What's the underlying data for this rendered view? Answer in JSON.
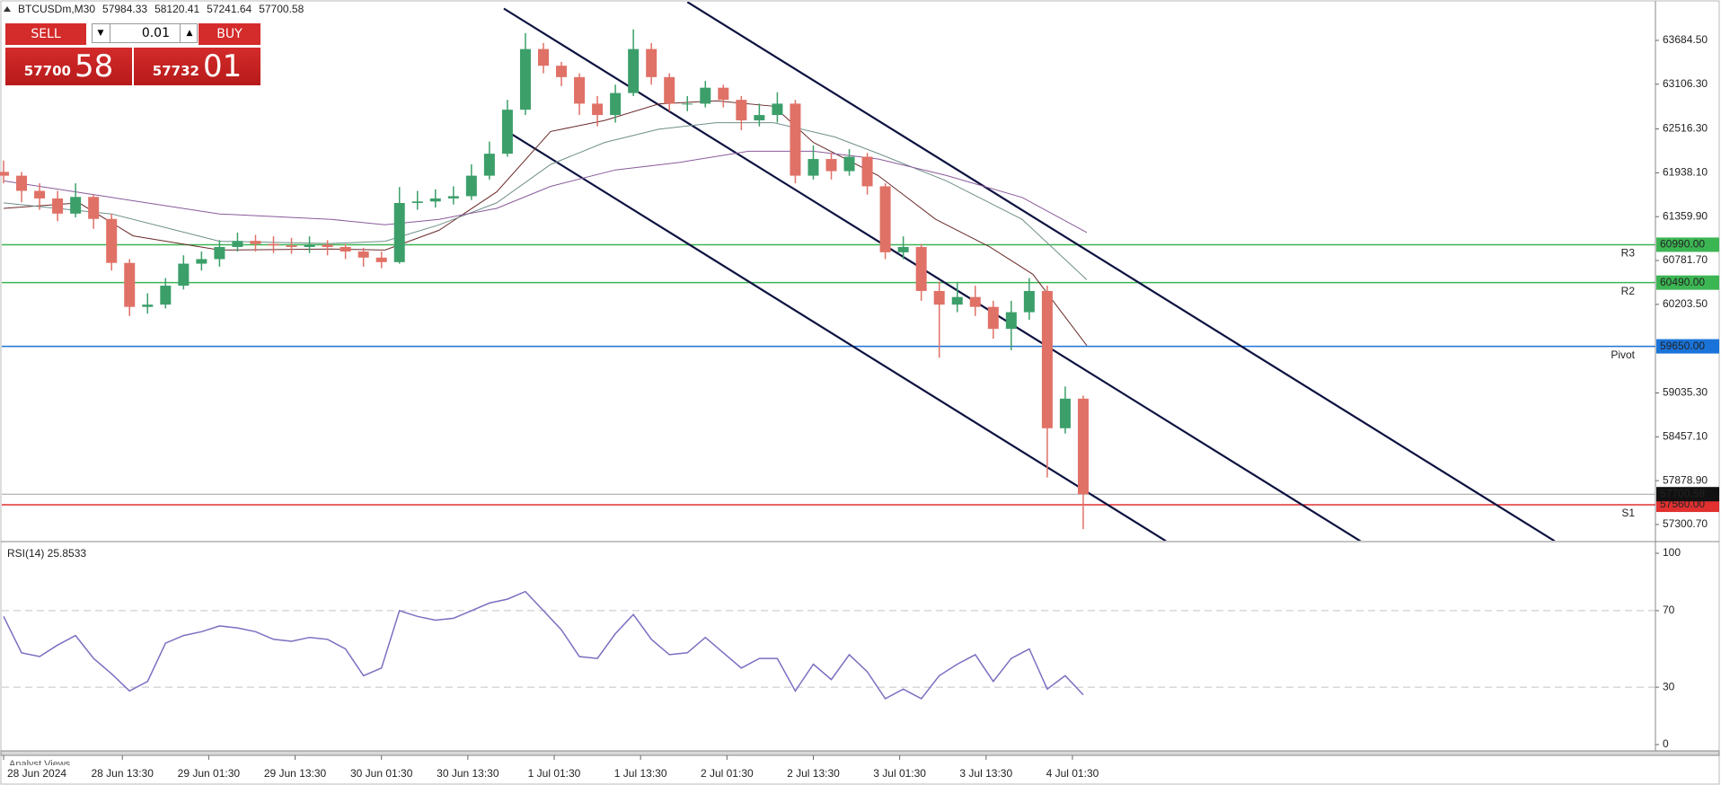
{
  "ui": {
    "header": {
      "symbol": "BTCUSDm,M30",
      "ohlc": [
        "57984.33",
        "58120.41",
        "57241.64",
        "57700.58"
      ]
    },
    "trade": {
      "sell": "SELL",
      "buy": "BUY",
      "lot": "0.01",
      "sell_price": [
        "57700",
        "58"
      ],
      "buy_price": [
        "57732",
        "01"
      ]
    },
    "tab": "Analyst Views"
  },
  "chart_data": [
    {
      "type": "candlestick",
      "x": [
        0,
        5,
        10,
        15,
        20,
        25,
        30,
        35,
        40,
        45,
        50,
        55,
        60,
        65,
        70,
        75,
        80,
        85,
        90,
        95,
        100,
        105,
        110,
        115,
        120,
        125,
        130,
        135,
        140,
        145,
        150,
        155,
        160,
        165,
        170,
        175,
        180,
        185,
        190,
        195,
        200,
        205,
        210,
        215,
        220,
        225,
        230,
        235,
        240,
        245,
        250,
        255,
        260,
        265,
        270,
        275,
        280,
        285,
        290,
        295,
        300
      ],
      "open": [
        61950,
        61900,
        61700,
        61600,
        61400,
        61620,
        61330,
        60750,
        60170,
        60200,
        60450,
        60740,
        60800,
        60960,
        61040,
        61000,
        60980,
        60960,
        60990,
        60960,
        60900,
        60820,
        60760,
        61540,
        61560,
        61600,
        61630,
        61900,
        62190,
        62770,
        63570,
        63350,
        63200,
        62850,
        62700,
        62990,
        63570,
        63200,
        62850,
        62850,
        63060,
        62900,
        62630,
        62700,
        62850,
        61900,
        62120,
        61960,
        62150,
        61760,
        60890,
        60960,
        60380,
        60200,
        60300,
        60170,
        59880,
        60100,
        60380,
        58570,
        58960
      ],
      "high": [
        62100,
        61950,
        61800,
        61700,
        61800,
        61650,
        61400,
        60800,
        60350,
        60550,
        60850,
        60900,
        61050,
        61150,
        61120,
        61100,
        61080,
        61100,
        61050,
        61000,
        60950,
        60900,
        61750,
        61700,
        61720,
        61760,
        62050,
        62350,
        62900,
        63780,
        63650,
        63400,
        63250,
        62950,
        63100,
        63830,
        63650,
        63250,
        62950,
        63150,
        63100,
        62950,
        62850,
        63000,
        62900,
        62300,
        62200,
        62250,
        62200,
        61800,
        61100,
        61000,
        60500,
        60500,
        60450,
        60250,
        60250,
        60550,
        60450,
        59120,
        59000
      ],
      "low": [
        61800,
        61550,
        61450,
        61300,
        61350,
        61200,
        60650,
        60050,
        60080,
        60150,
        60400,
        60650,
        60700,
        60900,
        60900,
        60880,
        60870,
        60880,
        60850,
        60800,
        60700,
        60680,
        60740,
        61450,
        61480,
        61520,
        61580,
        61850,
        62150,
        62700,
        63250,
        63080,
        62700,
        62550,
        62600,
        62950,
        63100,
        62750,
        62750,
        62800,
        62800,
        62500,
        62550,
        62600,
        61800,
        61850,
        61850,
        61900,
        61650,
        60800,
        60800,
        60250,
        59500,
        60100,
        60050,
        59750,
        59600,
        60000,
        57920,
        58500,
        57240
      ],
      "close": [
        61900,
        61700,
        61600,
        61400,
        61620,
        61330,
        60750,
        60170,
        60200,
        60450,
        60740,
        60800,
        60960,
        61040,
        61000,
        60980,
        60960,
        60990,
        60960,
        60900,
        60820,
        60760,
        61540,
        61560,
        61600,
        61630,
        61900,
        62190,
        62770,
        63570,
        63350,
        63200,
        62850,
        62700,
        62990,
        63570,
        63200,
        62850,
        62850,
        63060,
        62900,
        62630,
        62700,
        62850,
        61900,
        62120,
        61960,
        62150,
        61760,
        60890,
        60960,
        60380,
        60200,
        60300,
        60170,
        59880,
        60100,
        60380,
        58570,
        58960,
        57700
      ],
      "up_color": "#3c9f6a",
      "down_color": "#e07167",
      "xlim": [
        -0.5,
        459
      ],
      "ylim": [
        57087,
        64193
      ],
      "yticks": [
        {
          "value": 63684.5,
          "label": "63684.50"
        },
        {
          "value": 63106.3,
          "label": "63106.30"
        },
        {
          "value": 62516.3,
          "label": "62516.30"
        },
        {
          "value": 61938.1,
          "label": "61938.10"
        },
        {
          "value": 61359.9,
          "label": "61359.90"
        },
        {
          "value": 60781.7,
          "label": "60781.70"
        },
        {
          "value": 60203.5,
          "label": "60203.50"
        },
        {
          "value": 59035.3,
          "label": "59035.30"
        },
        {
          "value": 58457.1,
          "label": "58457.10"
        },
        {
          "value": 57878.9,
          "label": "57878.90"
        },
        {
          "value": 57300.7,
          "label": "57300.70"
        }
      ],
      "overlays": [
        {
          "color": "#6b2a2a",
          "x": [
            0,
            21,
            36,
            60,
            91,
            106,
            121,
            137,
            152,
            167,
            182,
            198,
            214,
            225,
            243,
            259,
            274,
            286,
            301
          ],
          "values": [
            61469,
            61541,
            61107,
            60919,
            60933,
            60919,
            61180,
            61686,
            62483,
            62628,
            62845,
            62888,
            62816,
            62338,
            61903,
            61324,
            60962,
            60600,
            59659
          ]
        },
        {
          "color": "#6f8f8a",
          "x": [
            0,
            30,
            60,
            91,
            106,
            121,
            137,
            152,
            167,
            182,
            198,
            214,
            231,
            243,
            262,
            283,
            301
          ],
          "values": [
            61541,
            61396,
            61035,
            61006,
            61035,
            61252,
            61541,
            62048,
            62338,
            62512,
            62599,
            62599,
            62410,
            62193,
            61831,
            61324,
            60528
          ]
        },
        {
          "color": "#8a5a9a",
          "x": [
            0,
            30,
            60,
            91,
            106,
            121,
            137,
            152,
            170,
            188,
            207,
            225,
            243,
            262,
            283,
            301
          ],
          "values": [
            61831,
            61613,
            61396,
            61324,
            61252,
            61324,
            61469,
            61759,
            61976,
            62077,
            62222,
            62222,
            62120,
            61903,
            61613,
            61150
          ]
        }
      ],
      "trendlines": [
        {
          "color": "#0d1240",
          "x": [
            190,
            431
          ],
          "values": [
            64191,
            57082
          ]
        },
        {
          "color": "#0d1240",
          "x": [
            139,
            377
          ],
          "values": [
            64104,
            57082
          ]
        },
        {
          "color": "#0d1240",
          "x": [
            139,
            323
          ],
          "values": [
            62512,
            57082
          ]
        }
      ],
      "levels": [
        {
          "name": "R3",
          "value": 60990,
          "value_label": "60990.00",
          "color": "#3cb553"
        },
        {
          "name": "R2",
          "value": 60490,
          "value_label": "60490.00",
          "color": "#3cb553"
        },
        {
          "name": "Pivot",
          "value": 59650,
          "value_label": "59650.00",
          "color": "#1a73d9"
        },
        {
          "name": "S1",
          "value": 57560,
          "value_label": "57560.00",
          "color": "#e03030"
        }
      ],
      "last_price": {
        "value": 57700.58,
        "value_label": "57700.58",
        "color": "#a0a0a0",
        "tag_color": "#111111"
      }
    },
    {
      "type": "line",
      "title": "RSI(14) 25.8533",
      "color": "#7b6fc1",
      "x": [
        0,
        5,
        10,
        15,
        20,
        25,
        30,
        35,
        40,
        45,
        50,
        55,
        60,
        65,
        70,
        75,
        80,
        85,
        90,
        95,
        100,
        105,
        110,
        115,
        120,
        125,
        130,
        135,
        140,
        145,
        150,
        155,
        160,
        165,
        170,
        175,
        180,
        185,
        190,
        195,
        200,
        205,
        210,
        215,
        220,
        225,
        230,
        235,
        240,
        245,
        250,
        255,
        260,
        265,
        270,
        275,
        280,
        285,
        290,
        295,
        300
      ],
      "values": [
        67,
        48,
        46,
        52,
        57,
        45,
        37,
        28,
        33,
        53,
        57,
        59,
        62,
        61,
        59,
        55,
        54,
        56,
        55,
        50,
        36,
        40,
        70,
        67,
        65,
        66,
        70,
        74,
        76,
        80,
        70,
        60,
        46,
        45,
        58,
        68,
        55,
        47,
        48,
        56,
        48,
        40,
        45,
        45,
        28,
        42,
        34,
        47,
        38,
        24,
        29,
        24,
        36,
        42,
        47,
        33,
        45,
        50,
        29,
        36,
        26
      ],
      "xlim": [
        -0.5,
        459
      ],
      "ylim": [
        -3.3,
        104.7
      ],
      "yticks": [
        0,
        30,
        70,
        100
      ],
      "levels": [
        70,
        30
      ],
      "xticks": [
        {
          "value": 0,
          "label": "28 Jun 2024"
        },
        {
          "value": 33,
          "label": "28 Jun 13:30"
        },
        {
          "value": 57,
          "label": "29 Jun 01:30"
        },
        {
          "value": 81,
          "label": "29 Jun 13:30"
        },
        {
          "value": 105,
          "label": "30 Jun 01:30"
        },
        {
          "value": 129,
          "label": "30 Jun 13:30"
        },
        {
          "value": 153,
          "label": "1 Jul 01:30"
        },
        {
          "value": 177,
          "label": "1 Jul 13:30"
        },
        {
          "value": 201,
          "label": "2 Jul 01:30"
        },
        {
          "value": 225,
          "label": "2 Jul 13:30"
        },
        {
          "value": 249,
          "label": "3 Jul 01:30"
        },
        {
          "value": 273,
          "label": "3 Jul 13:30"
        },
        {
          "value": 297,
          "label": "4 Jul 01:30"
        }
      ]
    }
  ]
}
